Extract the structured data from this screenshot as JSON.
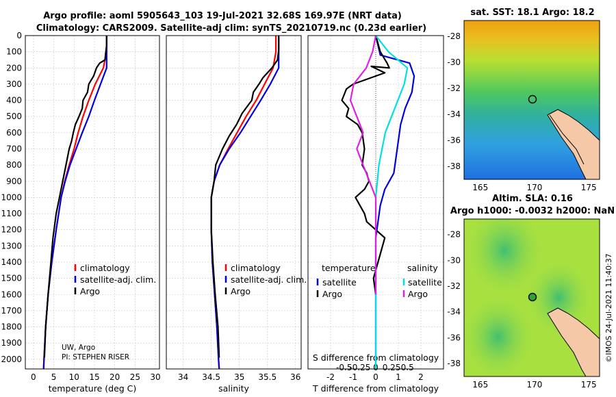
{
  "header": {
    "line1": "Argo profile: aoml 5905643_103 19-Jul-2021 32.68S 169.97E (NRT data)",
    "line2": "Climatology: CARS2009. Satellite-adj clim: synTS_20210719.nc (0.23d earlier)"
  },
  "colors": {
    "climatology": "#ff0000",
    "satellite": "#0000e0",
    "argo": "#000000",
    "sal_satellite": "#00e0e0",
    "sal_argo": "#e020e0"
  },
  "credit": {
    "line1": "UW, Argo",
    "line2": "PI: STEPHEN RISER"
  },
  "stamp": "©IMOS 24-Jul-2021 11:40:37",
  "depth_ticks": [
    "0",
    "100",
    "200",
    "300",
    "400",
    "500",
    "600",
    "700",
    "800",
    "900",
    "1000",
    "1100",
    "1200",
    "1300",
    "1400",
    "1500",
    "1600",
    "1700",
    "1800",
    "1900",
    "2000"
  ],
  "chart_data": [
    {
      "type": "line",
      "name": "temperature",
      "xlabel": "temperature (deg C)",
      "xlim": [
        -2,
        31
      ],
      "ylim": [
        2060,
        0
      ],
      "xticks": [
        0,
        5,
        10,
        15,
        20,
        25,
        30
      ],
      "xtick_labels": [
        "0",
        "5",
        "10",
        "15",
        "20",
        "25",
        "30"
      ],
      "legend": [
        "climatology",
        "satellite-adj. clim.",
        "Argo"
      ],
      "series": [
        {
          "name": "climatology",
          "color": "#ff0000",
          "points": [
            [
              18,
              0
            ],
            [
              18,
              100
            ],
            [
              17.2,
              200
            ],
            [
              15.2,
              300
            ],
            [
              13.6,
              400
            ],
            [
              12.2,
              500
            ],
            [
              11,
              600
            ],
            [
              10,
              700
            ],
            [
              8.8,
              800
            ],
            [
              7.7,
              900
            ],
            [
              6.8,
              1000
            ],
            [
              5.6,
              1200
            ],
            [
              4.5,
              1400
            ],
            [
              3.6,
              1600
            ],
            [
              3.0,
              1800
            ],
            [
              2.6,
              2000
            ],
            [
              2.5,
              2060
            ]
          ]
        },
        {
          "name": "satellite-adj. clim.",
          "color": "#0000e0",
          "points": [
            [
              18,
              0
            ],
            [
              18,
              100
            ],
            [
              18,
              200
            ],
            [
              16.5,
              300
            ],
            [
              15,
              400
            ],
            [
              13.6,
              500
            ],
            [
              12,
              600
            ],
            [
              10.5,
              700
            ],
            [
              9,
              800
            ],
            [
              7.8,
              900
            ],
            [
              6.8,
              1000
            ],
            [
              5.6,
              1200
            ],
            [
              4.5,
              1400
            ],
            [
              3.6,
              1600
            ],
            [
              3.0,
              1800
            ],
            [
              2.6,
              2000
            ],
            [
              2.5,
              2060
            ]
          ]
        },
        {
          "name": "Argo",
          "color": "#000000",
          "points": [
            [
              18,
              5
            ],
            [
              18,
              60
            ],
            [
              17.8,
              100
            ],
            [
              17.6,
              150
            ],
            [
              16.3,
              170
            ],
            [
              15.5,
              200
            ],
            [
              14.8,
              250
            ],
            [
              13.6,
              300
            ],
            [
              13.3,
              350
            ],
            [
              12.2,
              400
            ],
            [
              12.0,
              450
            ],
            [
              11.2,
              500
            ],
            [
              10.3,
              550
            ],
            [
              9.8,
              600
            ],
            [
              9.4,
              650
            ],
            [
              8.8,
              700
            ],
            [
              8.0,
              800
            ],
            [
              7.2,
              900
            ],
            [
              6.4,
              1000
            ],
            [
              5.6,
              1100
            ],
            [
              4.8,
              1250
            ],
            [
              4.3,
              1400
            ],
            [
              3.6,
              1600
            ],
            [
              3.0,
              1800
            ],
            [
              2.7,
              1990
            ]
          ]
        }
      ]
    },
    {
      "type": "line",
      "name": "salinity",
      "xlabel": "salinity",
      "xlim": [
        33.7,
        36.1
      ],
      "ylim": [
        2060,
        0
      ],
      "xticks": [
        34,
        34.5,
        35,
        35.5,
        36
      ],
      "xtick_labels": [
        "34",
        "34.5",
        "35",
        "35.5",
        "36"
      ],
      "legend": [
        "climatology",
        "satellite-adj. clim.",
        "Argo"
      ],
      "series": [
        {
          "name": "climatology",
          "color": "#ff0000",
          "points": [
            [
              35.65,
              0
            ],
            [
              35.65,
              100
            ],
            [
              35.6,
              200
            ],
            [
              35.45,
              300
            ],
            [
              35.3,
              400
            ],
            [
              35.12,
              500
            ],
            [
              34.96,
              600
            ],
            [
              34.8,
              700
            ],
            [
              34.65,
              800
            ],
            [
              34.55,
              900
            ],
            [
              34.5,
              1000
            ],
            [
              34.5,
              1200
            ],
            [
              34.52,
              1400
            ],
            [
              34.56,
              1600
            ],
            [
              34.6,
              1800
            ],
            [
              34.63,
              2000
            ],
            [
              34.64,
              2060
            ]
          ]
        },
        {
          "name": "satellite-adj. clim.",
          "color": "#0000e0",
          "points": [
            [
              35.7,
              0
            ],
            [
              35.7,
              100
            ],
            [
              35.7,
              200
            ],
            [
              35.55,
              300
            ],
            [
              35.38,
              400
            ],
            [
              35.2,
              500
            ],
            [
              35.02,
              600
            ],
            [
              34.82,
              700
            ],
            [
              34.65,
              800
            ],
            [
              34.55,
              900
            ],
            [
              34.5,
              1000
            ],
            [
              34.5,
              1200
            ],
            [
              34.52,
              1400
            ],
            [
              34.56,
              1600
            ],
            [
              34.6,
              1800
            ],
            [
              34.63,
              2000
            ],
            [
              34.64,
              2060
            ]
          ]
        },
        {
          "name": "Argo",
          "color": "#000000",
          "points": [
            [
              35.7,
              5
            ],
            [
              35.7,
              90
            ],
            [
              35.68,
              150
            ],
            [
              35.58,
              200
            ],
            [
              35.42,
              260
            ],
            [
              35.35,
              300
            ],
            [
              35.25,
              350
            ],
            [
              35.22,
              400
            ],
            [
              35.05,
              480
            ],
            [
              34.95,
              550
            ],
            [
              34.82,
              620
            ],
            [
              34.7,
              700
            ],
            [
              34.58,
              800
            ],
            [
              34.55,
              900
            ],
            [
              34.5,
              1000
            ],
            [
              34.5,
              1200
            ],
            [
              34.53,
              1400
            ],
            [
              34.57,
              1600
            ],
            [
              34.62,
              1800
            ],
            [
              34.64,
              1990
            ]
          ]
        }
      ]
    },
    {
      "type": "line",
      "name": "difference from climatology",
      "xlabel": "T difference from climatology",
      "xlabel_top": "S difference from climatology",
      "xlim": [
        -3,
        3
      ],
      "ylim": [
        2060,
        0
      ],
      "xticks": [
        -2,
        -1,
        0,
        1,
        2
      ],
      "xtick_labels": [
        "-2",
        "-1",
        "0",
        "1",
        "2"
      ],
      "xticks_top": [
        "-0.5",
        "-0.25",
        "0",
        "0.25",
        "0.5"
      ],
      "legend_left_title": "temperature",
      "legend_right_title": "salinity",
      "legend_left": [
        "satellite",
        "Argo"
      ],
      "legend_right": [
        "satellite",
        "Argo"
      ],
      "series": [
        {
          "name": "temperature satellite",
          "color": "#0000e0",
          "points": [
            [
              0,
              0
            ],
            [
              0.2,
              120
            ],
            [
              1.5,
              170
            ],
            [
              1.7,
              250
            ],
            [
              1.6,
              350
            ],
            [
              1.3,
              450
            ],
            [
              1.1,
              550
            ],
            [
              1.0,
              650
            ],
            [
              0.9,
              750
            ],
            [
              0.8,
              850
            ],
            [
              0.4,
              950
            ],
            [
              0.2,
              1050
            ],
            [
              0.1,
              1150
            ],
            [
              0,
              1250
            ],
            [
              0,
              2060
            ]
          ]
        },
        {
          "name": "temperature Argo",
          "color": "#000000",
          "points": [
            [
              0,
              0
            ],
            [
              0.2,
              100
            ],
            [
              0.5,
              170
            ],
            [
              0.6,
              200
            ],
            [
              -0.2,
              190
            ],
            [
              0.4,
              230
            ],
            [
              -1.0,
              300
            ],
            [
              -1.3,
              330
            ],
            [
              -1.5,
              400
            ],
            [
              -1.2,
              450
            ],
            [
              -1.3,
              500
            ],
            [
              -0.8,
              550
            ],
            [
              -0.6,
              600
            ],
            [
              -0.5,
              700
            ],
            [
              -0.6,
              800
            ],
            [
              -0.4,
              850
            ],
            [
              -0.3,
              900
            ],
            [
              -0.5,
              950
            ],
            [
              -0.9,
              1000
            ],
            [
              -0.7,
              1050
            ],
            [
              -0.5,
              1100
            ],
            [
              -0.4,
              1150
            ],
            [
              0.4,
              1250
            ],
            [
              0.3,
              1300
            ],
            [
              0.2,
              1350
            ],
            [
              -0.1,
              1500
            ],
            [
              0,
              1600
            ]
          ]
        },
        {
          "name": "salinity satellite",
          "color": "#00e0e0",
          "points": [
            [
              0,
              0
            ],
            [
              0.2,
              100
            ],
            [
              0.5,
              200
            ],
            [
              0.45,
              300
            ],
            [
              0.35,
              400
            ],
            [
              0.25,
              500
            ],
            [
              0.15,
              600
            ],
            [
              0.05,
              800
            ],
            [
              0,
              1000
            ],
            [
              0,
              2060
            ]
          ]
        },
        {
          "name": "salinity Argo",
          "color": "#e020e0",
          "points": [
            [
              0,
              0
            ],
            [
              -0.05,
              100
            ],
            [
              -0.15,
              200
            ],
            [
              -0.35,
              300
            ],
            [
              -0.4,
              400
            ],
            [
              -0.3,
              500
            ],
            [
              -0.2,
              600
            ],
            [
              -0.3,
              700
            ],
            [
              -0.2,
              800
            ],
            [
              -0.1,
              900
            ],
            [
              0,
              1000
            ],
            [
              0,
              1600
            ]
          ]
        }
      ]
    },
    {
      "type": "heatmap",
      "name": "SST map",
      "title": "sat. SST: 18.1 Argo: 18.2",
      "xlim": [
        163.5,
        176
      ],
      "ylim": [
        -39,
        -26.8
      ],
      "xticks": [
        165,
        170,
        175
      ],
      "xtick_labels": [
        "165",
        "170",
        "175"
      ],
      "yticks": [
        -28,
        -30,
        -32,
        -34,
        -36,
        -38
      ],
      "ytick_labels": [
        "-28",
        "-30",
        "-32",
        "-34",
        "-36",
        "-38"
      ],
      "argo_position": [
        169.97,
        -32.68
      ]
    },
    {
      "type": "heatmap",
      "name": "SLA map",
      "title": "Altim. SLA: 0.16",
      "subtitle": "Argo h1000: -0.0032 h2000: NaN",
      "xlim": [
        163.5,
        176
      ],
      "ylim": [
        -39,
        -26.8
      ],
      "xticks": [
        165,
        170,
        175
      ],
      "xtick_labels": [
        "165",
        "170",
        "175"
      ],
      "yticks": [
        -28,
        -30,
        -32,
        -34,
        -36,
        -38
      ],
      "ytick_labels": [
        "-28",
        "-30",
        "-32",
        "-34",
        "-36",
        "-38"
      ],
      "argo_position": [
        169.97,
        -32.68
      ]
    }
  ]
}
